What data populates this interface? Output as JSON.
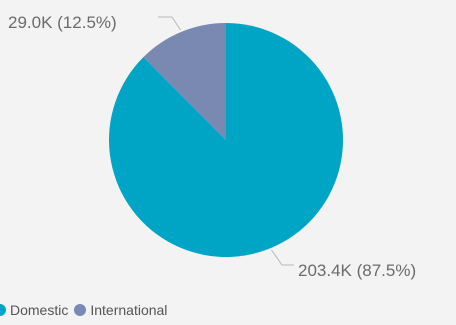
{
  "chart_data": {
    "type": "pie",
    "series": [
      {
        "name": "Domestic",
        "value": 203.4,
        "value_label": "203.4K (87.5%)",
        "percent": 87.5,
        "color": "#00a5c5"
      },
      {
        "name": "International",
        "value": 29.0,
        "value_label": "29.0K (12.5%)",
        "percent": 12.5,
        "color": "#7a89b2"
      }
    ],
    "start_angle_deg": 0,
    "direction": "clockwise",
    "legend_position": "bottom-left",
    "background": "#f3f3f3",
    "leader_line_color": "#b8b8b8"
  }
}
